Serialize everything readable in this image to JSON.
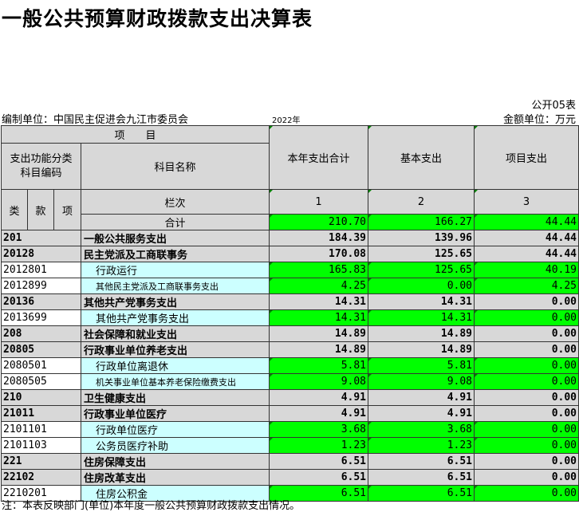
{
  "title": "一般公共预算财政拨款支出决算表",
  "table_no": "公开05表",
  "unit_label": "编制单位：中国民主促进会九江市委员会",
  "year": "2022年",
  "amount_unit": "金额单位：万元",
  "headers": {
    "item_group": "项　　目",
    "code_label": "支出功能分类\n科目编码",
    "name_label": "科目名称",
    "lei": "类",
    "kuan": "款",
    "xiang": "项",
    "lanci": "栏次",
    "col_total": "本年支出合计",
    "col_basic": "基本支出",
    "col_project": "项目支出",
    "idx1": "1",
    "idx2": "2",
    "idx3": "3",
    "total_label": "合计"
  },
  "totals": [
    "210.70",
    "166.27",
    "44.44"
  ],
  "rows": [
    {
      "code": "201",
      "name": "一般公共服务支出",
      "v": [
        "184.39",
        "139.96",
        "44.44"
      ],
      "level": "top"
    },
    {
      "code": "20128",
      "name": "民主党派及工商联事务",
      "v": [
        "170.08",
        "125.65",
        "44.44"
      ],
      "level": "top"
    },
    {
      "code": "2012801",
      "name": "行政运行",
      "v": [
        "165.83",
        "125.65",
        "40.19"
      ],
      "level": "leaf"
    },
    {
      "code": "2012899",
      "name": "其他民主党派及工商联事务支出",
      "v": [
        "4.25",
        "0.00",
        "4.25"
      ],
      "level": "leaf"
    },
    {
      "code": "20136",
      "name": "其他共产党事务支出",
      "v": [
        "14.31",
        "14.31",
        "0.00"
      ],
      "level": "top"
    },
    {
      "code": "2013699",
      "name": "其他共产党事务支出",
      "v": [
        "14.31",
        "14.31",
        "0.00"
      ],
      "level": "leaf"
    },
    {
      "code": "208",
      "name": "社会保障和就业支出",
      "v": [
        "14.89",
        "14.89",
        "0.00"
      ],
      "level": "top"
    },
    {
      "code": "20805",
      "name": "行政事业单位养老支出",
      "v": [
        "14.89",
        "14.89",
        "0.00"
      ],
      "level": "top"
    },
    {
      "code": "2080501",
      "name": "行政单位离退休",
      "v": [
        "5.81",
        "5.81",
        "0.00"
      ],
      "level": "leaf"
    },
    {
      "code": "2080505",
      "name": "机关事业单位基本养老保险缴费支出",
      "v": [
        "9.08",
        "9.08",
        "0.00"
      ],
      "level": "leaf"
    },
    {
      "code": "210",
      "name": "卫生健康支出",
      "v": [
        "4.91",
        "4.91",
        "0.00"
      ],
      "level": "top"
    },
    {
      "code": "21011",
      "name": "行政事业单位医疗",
      "v": [
        "4.91",
        "4.91",
        "0.00"
      ],
      "level": "top"
    },
    {
      "code": "2101101",
      "name": "行政单位医疗",
      "v": [
        "3.68",
        "3.68",
        "0.00"
      ],
      "level": "leaf"
    },
    {
      "code": "2101103",
      "name": "公务员医疗补助",
      "v": [
        "1.23",
        "1.23",
        "0.00"
      ],
      "level": "leaf"
    },
    {
      "code": "221",
      "name": "住房保障支出",
      "v": [
        "6.51",
        "6.51",
        "0.00"
      ],
      "level": "top"
    },
    {
      "code": "22102",
      "name": "住房改革支出",
      "v": [
        "6.51",
        "6.51",
        "0.00"
      ],
      "level": "top"
    },
    {
      "code": "2210201",
      "name": "住房公积金",
      "v": [
        "6.51",
        "6.51",
        "0.00"
      ],
      "level": "leaf"
    }
  ],
  "footnote": "注：本表反映部门(单位)本年度一般公共预算财政拨款支出情况。"
}
